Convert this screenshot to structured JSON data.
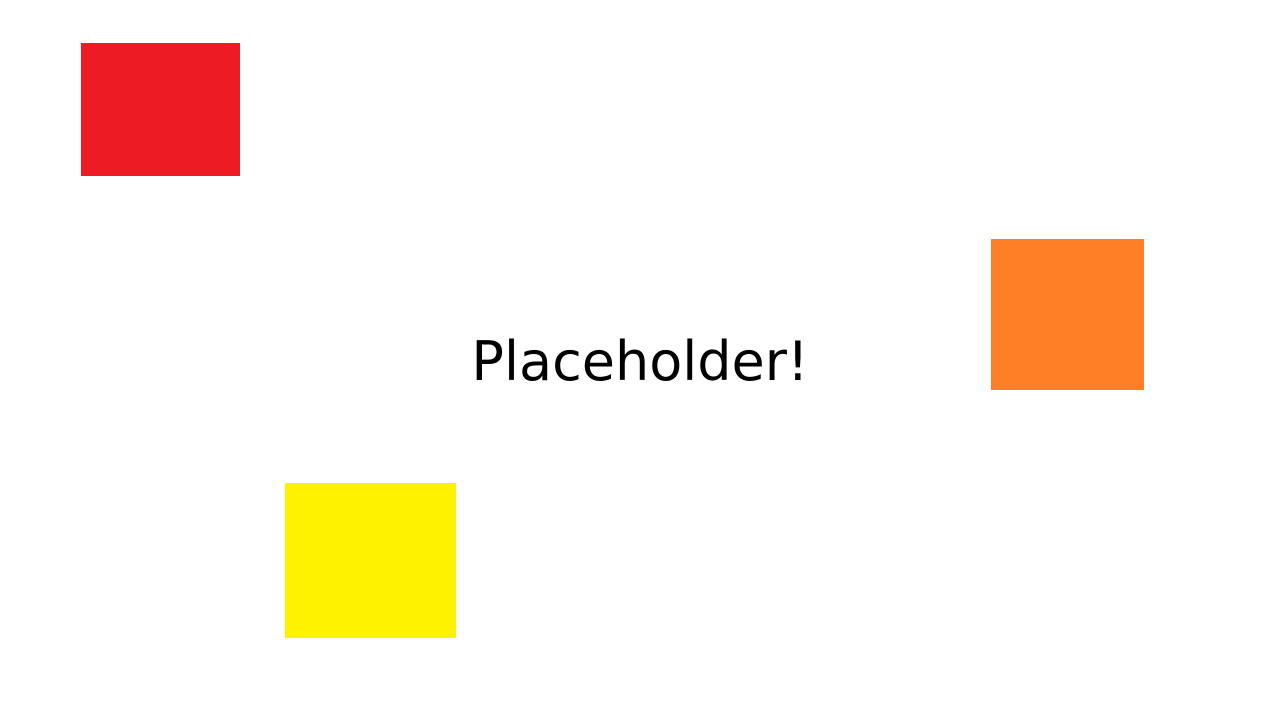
{
  "canvas": {
    "background": "#ffffff",
    "caption": "Placeholder!",
    "caption_color": "#000000"
  },
  "shapes": [
    {
      "name": "red-square",
      "color": "#ed1c24"
    },
    {
      "name": "orange-square",
      "color": "#ff7f27"
    },
    {
      "name": "yellow-square",
      "color": "#fff200"
    }
  ]
}
